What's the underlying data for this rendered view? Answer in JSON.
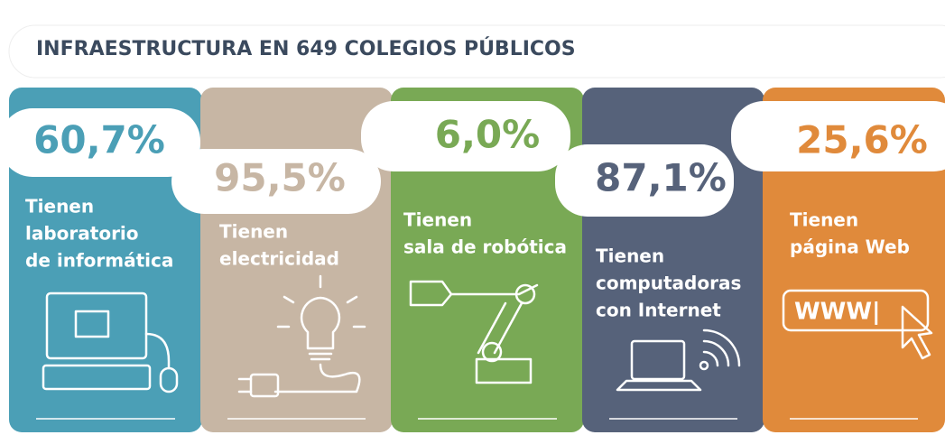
{
  "title": "INFRAESTRUCTURA EN 649 COLEGIOS PÚBLICOS",
  "cards": [
    {
      "value": "60,7%",
      "lines": [
        "Tienen",
        "laboratorio",
        "de informática"
      ]
    },
    {
      "value": "95,5%",
      "lines": [
        "Tienen",
        "electricidad"
      ]
    },
    {
      "value": "6,0%",
      "lines": [
        "Tienen",
        "sala de robótica"
      ]
    },
    {
      "value": "87,1%",
      "lines": [
        "Tienen",
        "computadoras",
        "con Internet"
      ]
    },
    {
      "value": "25,6%",
      "lines": [
        "Tienen",
        "página Web"
      ]
    }
  ]
}
